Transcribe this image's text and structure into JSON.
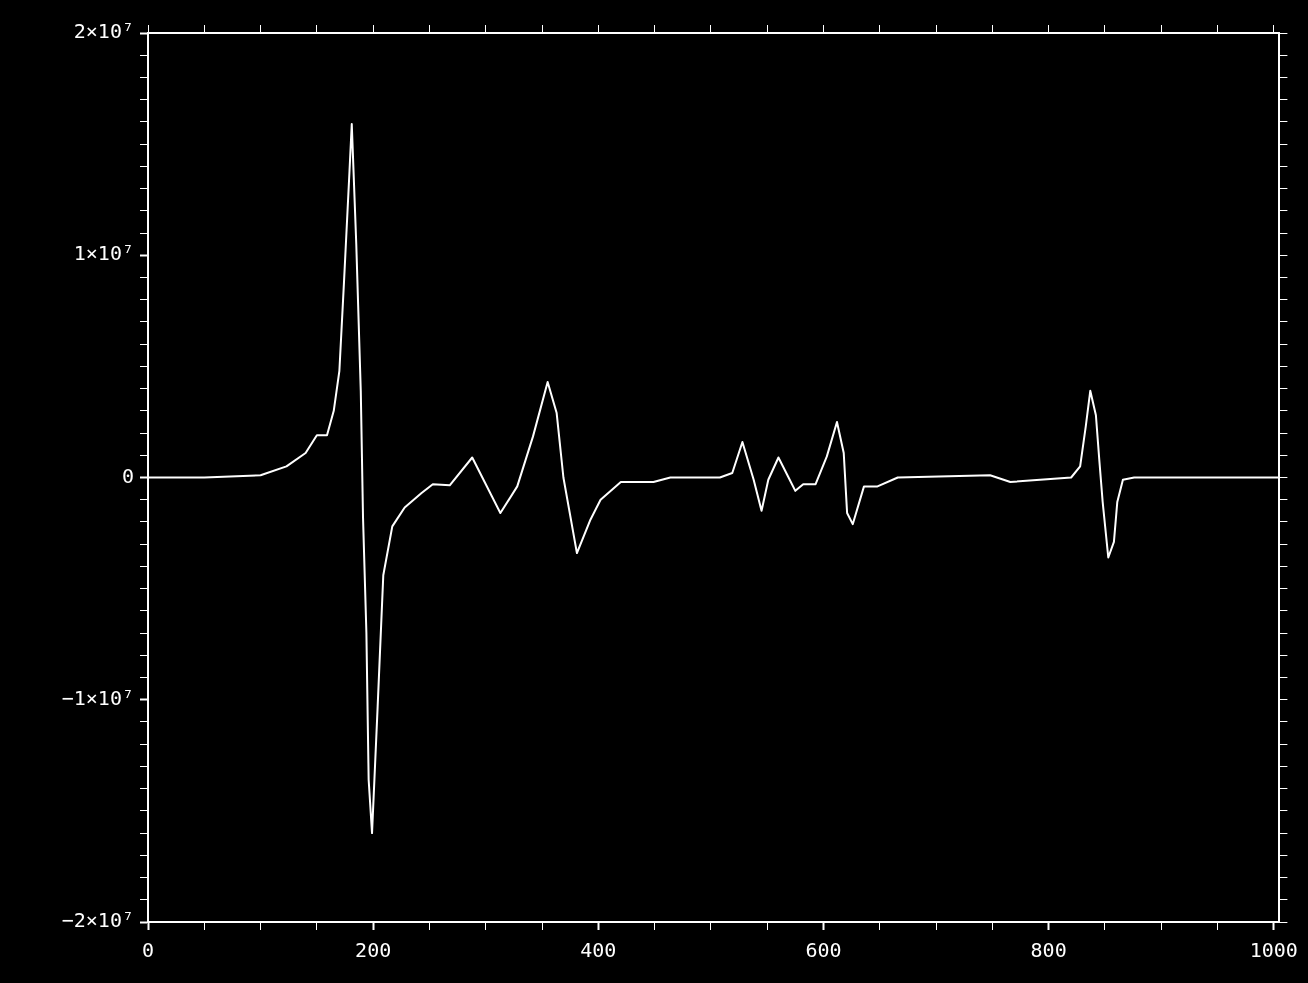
{
  "chart_data": {
    "type": "line",
    "color": "#ffffff",
    "marker": "none",
    "line_style": "solid",
    "grid": false,
    "legend": false,
    "x": [
      0,
      50,
      100,
      123,
      140,
      150,
      159,
      165,
      170,
      174,
      179,
      181,
      185,
      189,
      191,
      194,
      196,
      199,
      204,
      209,
      217,
      228,
      243,
      253,
      268,
      288,
      313,
      328,
      342,
      355,
      363,
      369,
      381,
      393,
      402,
      420,
      449,
      464,
      508,
      519,
      528,
      538,
      545,
      551,
      560,
      569,
      575,
      582,
      593,
      603,
      612,
      618,
      621,
      626,
      636,
      648,
      666,
      748,
      766,
      820,
      828,
      833,
      837,
      842,
      845,
      848,
      853,
      858,
      861,
      866,
      876,
      1005
    ],
    "values": [
      0,
      0,
      100000,
      500000,
      1100000,
      1900000,
      1900000,
      3000000,
      4800000,
      8700000,
      13800000,
      15900000,
      10500000,
      3900000,
      -1800000,
      -7000000,
      -13600000,
      -16000000,
      -10300000,
      -4400000,
      -2200000,
      -1350000,
      -700000,
      -300000,
      -350000,
      900000,
      -1600000,
      -400000,
      1850000,
      4300000,
      2900000,
      0,
      -3400000,
      -1900000,
      -1000000,
      -200000,
      -200000,
      0,
      0,
      200000,
      1600000,
      -100000,
      -1500000,
      -100000,
      900000,
      0,
      -600000,
      -300000,
      -300000,
      950000,
      2500000,
      1100000,
      -1600000,
      -2100000,
      -400000,
      -400000,
      0,
      100000,
      -200000,
      0,
      500000,
      2300000,
      3900000,
      2800000,
      800000,
      -1100000,
      -3600000,
      -2900000,
      -1100000,
      -100000,
      0,
      0
    ],
    "xlim": [
      0,
      1005
    ],
    "xticks": [
      0,
      {
        "value": 50,
        "label": null
      },
      {
        "value": 100,
        "label": null
      },
      {
        "value": 150,
        "label": null
      },
      200,
      {
        "value": 250,
        "label": null
      },
      {
        "value": 300,
        "label": null
      },
      {
        "value": 350,
        "label": null
      },
      400,
      {
        "value": 450,
        "label": null
      },
      {
        "value": 500,
        "label": null
      },
      {
        "value": 550,
        "label": null
      },
      600,
      {
        "value": 650,
        "label": null
      },
      {
        "value": 700,
        "label": null
      },
      {
        "value": 750,
        "label": null
      },
      800,
      {
        "value": 850,
        "label": null
      },
      {
        "value": 900,
        "label": null
      },
      {
        "value": 950,
        "label": null
      },
      1000
    ],
    "ylim": [
      -20000000,
      20000000
    ],
    "yticks": [
      {
        "value": -20000000,
        "label": "−2×10⁷"
      },
      {
        "value": -19000000,
        "label": null
      },
      {
        "value": -18000000,
        "label": null
      },
      {
        "value": -17000000,
        "label": null
      },
      {
        "value": -16000000,
        "label": null
      },
      {
        "value": -15000000,
        "label": null
      },
      {
        "value": -14000000,
        "label": null
      },
      {
        "value": -13000000,
        "label": null
      },
      {
        "value": -12000000,
        "label": null
      },
      {
        "value": -11000000,
        "label": null
      },
      {
        "value": -10000000,
        "label": "−1×10⁷"
      },
      {
        "value": -9000000,
        "label": null
      },
      {
        "value": -8000000,
        "label": null
      },
      {
        "value": -7000000,
        "label": null
      },
      {
        "value": -6000000,
        "label": null
      },
      {
        "value": -5000000,
        "label": null
      },
      {
        "value": -4000000,
        "label": null
      },
      {
        "value": -3000000,
        "label": null
      },
      {
        "value": -2000000,
        "label": null
      },
      {
        "value": -1000000,
        "label": null
      },
      0,
      {
        "value": 1000000,
        "label": null
      },
      {
        "value": 2000000,
        "label": null
      },
      {
        "value": 3000000,
        "label": null
      },
      {
        "value": 4000000,
        "label": null
      },
      {
        "value": 5000000,
        "label": null
      },
      {
        "value": 6000000,
        "label": null
      },
      {
        "value": 7000000,
        "label": null
      },
      {
        "value": 8000000,
        "label": null
      },
      {
        "value": 9000000,
        "label": null
      },
      {
        "value": 10000000,
        "label": "1×10⁷"
      },
      {
        "value": 11000000,
        "label": null
      },
      {
        "value": 12000000,
        "label": null
      },
      {
        "value": 13000000,
        "label": null
      },
      {
        "value": 14000000,
        "label": null
      },
      {
        "value": 15000000,
        "label": null
      },
      {
        "value": 16000000,
        "label": null
      },
      {
        "value": 17000000,
        "label": null
      },
      {
        "value": 18000000,
        "label": null
      },
      {
        "value": 19000000,
        "label": null
      },
      {
        "value": 20000000,
        "label": "2×10⁷"
      }
    ]
  }
}
